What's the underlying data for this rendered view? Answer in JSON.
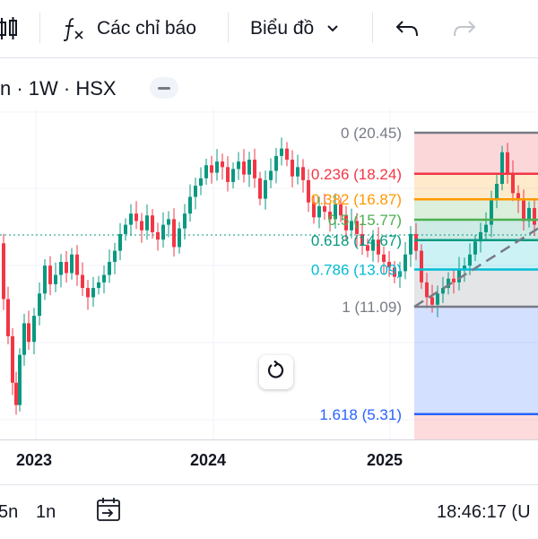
{
  "toolbar": {
    "indicators_label": "Các chỉ báo",
    "chart_type_label": "Biểu đồ"
  },
  "symbol": {
    "info": "n · 1W · HSX"
  },
  "fib_levels": [
    {
      "label": "0 (20.45)",
      "ratio": "0",
      "price": 20.45,
      "color": "#787b86"
    },
    {
      "label": "0.236 (18.24)",
      "ratio": "0.236",
      "price": 18.24,
      "color": "#f23645"
    },
    {
      "label": "0.382 (16.87)",
      "ratio": "0.382",
      "price": 16.87,
      "color": "#ff9800"
    },
    {
      "label": "0.5 (15.77)",
      "ratio": "0.5",
      "price": 15.77,
      "color": "#4caf50"
    },
    {
      "label": "0.618 (14.67)",
      "ratio": "0.618",
      "price": 14.67,
      "color": "#089981"
    },
    {
      "label": "0.786 (13.09)",
      "ratio": "0.786",
      "price": 13.09,
      "color": "#00bcd4"
    },
    {
      "label": "1 (11.09)",
      "ratio": "1",
      "price": 11.09,
      "color": "#787b86"
    },
    {
      "label": "1.618 (5.31)",
      "ratio": "1.618",
      "price": 5.31,
      "color": "#2962ff"
    }
  ],
  "time_axis": {
    "years": [
      "2023",
      "2024",
      "2025"
    ]
  },
  "bottom_bar": {
    "range_5n": "5n",
    "range_1n": "1n",
    "clock": "18:46:17 (U"
  },
  "colors": {
    "up": "#089981",
    "down": "#f23645",
    "fib_zone_red": "#f23645",
    "fib_zone_blue": "#2962ff"
  }
}
